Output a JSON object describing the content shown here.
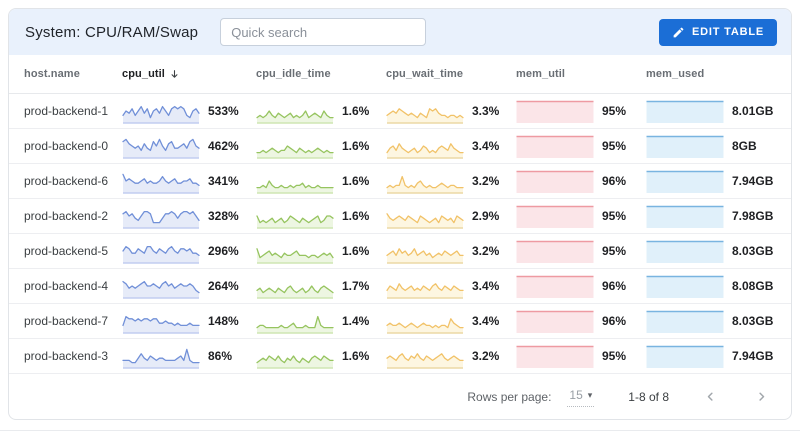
{
  "header": {
    "title": "System: CPU/RAM/Swap",
    "search_placeholder": "Quick search",
    "edit_button": "EDIT TABLE",
    "accent_color": "#1b6ed6"
  },
  "icons": {
    "edit_table": "pencil-icon",
    "sort_cpu_util": "arrow-down-icon",
    "rows_per_page": "caret-down-icon",
    "prev_page": "chevron-left-icon",
    "next_page": "chevron-right-icon"
  },
  "table": {
    "columns": [
      {
        "label": "host.name",
        "sorted": false
      },
      {
        "label": "cpu_util",
        "sorted": true
      },
      {
        "label": "cpu_idle_time",
        "sorted": false
      },
      {
        "label": "cpu_wait_time",
        "sorted": false
      },
      {
        "label": "mem_util",
        "sorted": false
      },
      {
        "label": "mem_used",
        "sorted": false
      }
    ],
    "metrics": [
      {
        "key": "cpu_util",
        "type": "line",
        "spark_field": "spark_cpu",
        "value_field": "cpu_util",
        "line": "#7190d8",
        "fill": "#e6ebf8",
        "base": "#c2cdf0"
      },
      {
        "key": "cpu_idle",
        "type": "line",
        "spark_field": "spark_idle",
        "value_field": "cpu_idle",
        "line": "#96c45f",
        "fill": "#edf6e2",
        "base": "#cfe5b3"
      },
      {
        "key": "cpu_wait",
        "type": "line",
        "spark_field": "spark_wait",
        "value_field": "cpu_wait",
        "line": "#f1c268",
        "fill": "#fdf6e1",
        "base": "#ecd8a6"
      },
      {
        "key": "mem_util",
        "type": "flat",
        "value_field": "mem_util",
        "line": "#ee9aa2",
        "fill": "#fbe5e8"
      },
      {
        "key": "mem_used",
        "type": "flat",
        "value_field": "mem_used",
        "line": "#79b4e0",
        "fill": "#e0f0fa"
      }
    ],
    "rows": [
      {
        "host": "prod-backend-1",
        "cpu_util": "533%",
        "cpu_idle": "1.6%",
        "cpu_wait": "3.3%",
        "mem_util": "95%",
        "mem_used": "8.01GB",
        "spark_cpu": [
          3,
          5,
          4,
          6,
          3,
          5,
          7,
          4,
          6,
          2,
          5,
          6,
          4,
          7,
          5,
          3,
          6,
          7,
          6,
          7,
          6,
          3,
          2,
          5,
          6,
          4
        ],
        "spark_idle": [
          2,
          3,
          2,
          3,
          5,
          3,
          2,
          4,
          3,
          2,
          3,
          4,
          2,
          3,
          2,
          3,
          5,
          2,
          3,
          4,
          3,
          2,
          5,
          3,
          2,
          2
        ],
        "spark_wait": [
          3,
          4,
          5,
          4,
          6,
          5,
          4,
          3,
          4,
          3,
          2,
          4,
          3,
          2,
          6,
          5,
          6,
          4,
          3,
          3,
          2,
          3,
          3,
          2,
          3,
          2
        ]
      },
      {
        "host": "prod-backend-0",
        "cpu_util": "462%",
        "cpu_idle": "1.6%",
        "cpu_wait": "3.4%",
        "mem_util": "95%",
        "mem_used": "8GB",
        "spark_cpu": [
          7,
          8,
          6,
          5,
          4,
          5,
          3,
          6,
          4,
          3,
          7,
          5,
          8,
          5,
          3,
          6,
          7,
          4,
          4,
          5,
          6,
          4,
          7,
          8,
          5,
          4
        ],
        "spark_idle": [
          2,
          2,
          3,
          2,
          3,
          4,
          3,
          2,
          3,
          3,
          5,
          4,
          3,
          2,
          4,
          3,
          2,
          3,
          2,
          3,
          4,
          3,
          2,
          3,
          2,
          2
        ],
        "spark_wait": [
          2,
          4,
          5,
          3,
          6,
          4,
          3,
          2,
          3,
          4,
          2,
          3,
          5,
          4,
          2,
          3,
          2,
          4,
          5,
          4,
          3,
          6,
          4,
          3,
          2,
          2
        ]
      },
      {
        "host": "prod-backend-6",
        "cpu_util": "341%",
        "cpu_idle": "1.6%",
        "cpu_wait": "3.2%",
        "mem_util": "96%",
        "mem_used": "7.94GB",
        "spark_cpu": [
          8,
          5,
          6,
          5,
          4,
          4,
          5,
          6,
          4,
          5,
          4,
          4,
          5,
          7,
          5,
          4,
          5,
          6,
          4,
          4,
          5,
          5,
          6,
          4,
          4,
          3
        ],
        "spark_idle": [
          2,
          2,
          3,
          2,
          5,
          3,
          2,
          2,
          3,
          2,
          2,
          3,
          2,
          3,
          3,
          4,
          2,
          3,
          2,
          2,
          3,
          2,
          2,
          2,
          2,
          2
        ],
        "spark_wait": [
          2,
          3,
          2,
          3,
          3,
          7,
          3,
          2,
          3,
          2,
          4,
          5,
          3,
          2,
          3,
          2,
          2,
          3,
          4,
          3,
          2,
          3,
          3,
          2,
          2,
          2
        ]
      },
      {
        "host": "prod-backend-2",
        "cpu_util": "328%",
        "cpu_idle": "1.6%",
        "cpu_wait": "2.9%",
        "mem_util": "95%",
        "mem_used": "7.98GB",
        "spark_cpu": [
          6,
          7,
          5,
          6,
          4,
          3,
          5,
          7,
          7,
          6,
          2,
          2,
          2,
          4,
          6,
          6,
          7,
          6,
          4,
          6,
          7,
          7,
          6,
          7,
          5,
          3
        ],
        "spark_idle": [
          5,
          2,
          3,
          2,
          3,
          4,
          2,
          3,
          4,
          2,
          3,
          5,
          4,
          3,
          2,
          4,
          3,
          2,
          3,
          4,
          5,
          2,
          3,
          5,
          5,
          4
        ],
        "spark_wait": [
          6,
          4,
          3,
          4,
          5,
          4,
          3,
          5,
          4,
          3,
          2,
          5,
          4,
          3,
          2,
          3,
          4,
          2,
          5,
          4,
          3,
          4,
          2,
          5,
          4,
          3
        ]
      },
      {
        "host": "prod-backend-5",
        "cpu_util": "296%",
        "cpu_idle": "1.6%",
        "cpu_wait": "3.2%",
        "mem_util": "95%",
        "mem_used": "8.03GB",
        "spark_cpu": [
          5,
          7,
          6,
          4,
          4,
          6,
          5,
          4,
          7,
          7,
          5,
          4,
          6,
          5,
          4,
          6,
          7,
          5,
          4,
          6,
          6,
          5,
          6,
          4,
          4,
          3
        ],
        "spark_idle": [
          6,
          2,
          3,
          4,
          5,
          3,
          4,
          3,
          2,
          4,
          3,
          3,
          4,
          5,
          3,
          3,
          3,
          2,
          3,
          3,
          2,
          3,
          4,
          3,
          4,
          2
        ],
        "spark_wait": [
          3,
          4,
          5,
          3,
          6,
          4,
          5,
          3,
          4,
          6,
          3,
          4,
          5,
          3,
          4,
          2,
          3,
          4,
          3,
          5,
          4,
          3,
          4,
          5,
          3,
          3
        ]
      },
      {
        "host": "prod-backend-4",
        "cpu_util": "264%",
        "cpu_idle": "1.7%",
        "cpu_wait": "3.4%",
        "mem_util": "96%",
        "mem_used": "8.08GB",
        "spark_cpu": [
          7,
          6,
          4,
          5,
          4,
          5,
          6,
          7,
          5,
          5,
          6,
          5,
          4,
          6,
          7,
          5,
          6,
          4,
          5,
          6,
          5,
          5,
          6,
          5,
          3,
          2
        ],
        "spark_idle": [
          3,
          4,
          2,
          3,
          4,
          3,
          2,
          4,
          3,
          2,
          4,
          5,
          3,
          2,
          3,
          4,
          2,
          3,
          5,
          3,
          2,
          4,
          5,
          4,
          3,
          2
        ],
        "spark_wait": [
          3,
          5,
          4,
          3,
          6,
          4,
          3,
          4,
          5,
          3,
          4,
          3,
          5,
          4,
          3,
          5,
          6,
          4,
          3,
          5,
          4,
          3,
          5,
          4,
          3,
          3
        ]
      },
      {
        "host": "prod-backend-7",
        "cpu_util": "148%",
        "cpu_idle": "1.4%",
        "cpu_wait": "3.4%",
        "mem_util": "96%",
        "mem_used": "8.03GB",
        "spark_cpu": [
          3,
          7,
          6,
          6,
          5,
          6,
          5,
          6,
          6,
          5,
          6,
          6,
          4,
          4,
          5,
          4,
          4,
          3,
          4,
          3,
          3,
          3,
          4,
          3,
          3,
          3
        ],
        "spark_idle": [
          2,
          3,
          3,
          2,
          2,
          2,
          2,
          2,
          3,
          2,
          2,
          3,
          4,
          2,
          2,
          2,
          3,
          2,
          2,
          2,
          7,
          3,
          2,
          2,
          2,
          2
        ],
        "spark_wait": [
          3,
          4,
          3,
          3,
          4,
          3,
          2,
          3,
          4,
          3,
          2,
          3,
          4,
          3,
          3,
          2,
          3,
          2,
          3,
          3,
          2,
          6,
          4,
          3,
          2,
          2
        ]
      },
      {
        "host": "prod-backend-3",
        "cpu_util": "86%",
        "cpu_idle": "1.6%",
        "cpu_wait": "3.2%",
        "mem_util": "95%",
        "mem_used": "7.94GB",
        "spark_cpu": [
          3,
          3,
          3,
          2,
          2,
          4,
          6,
          4,
          3,
          5,
          4,
          3,
          4,
          4,
          3,
          3,
          3,
          3,
          4,
          5,
          3,
          8,
          3,
          2,
          2,
          2
        ],
        "spark_idle": [
          2,
          3,
          4,
          3,
          5,
          4,
          3,
          5,
          3,
          2,
          4,
          3,
          5,
          3,
          2,
          4,
          3,
          2,
          4,
          5,
          4,
          3,
          5,
          4,
          3,
          3
        ],
        "spark_wait": [
          4,
          5,
          4,
          3,
          5,
          6,
          4,
          3,
          5,
          4,
          6,
          4,
          3,
          5,
          4,
          3,
          4,
          5,
          6,
          4,
          3,
          4,
          5,
          4,
          3,
          3
        ]
      }
    ]
  },
  "footer": {
    "rows_per_page_label": "Rows per page:",
    "rows_per_page_value": "15",
    "range": "1-8 of 8"
  }
}
